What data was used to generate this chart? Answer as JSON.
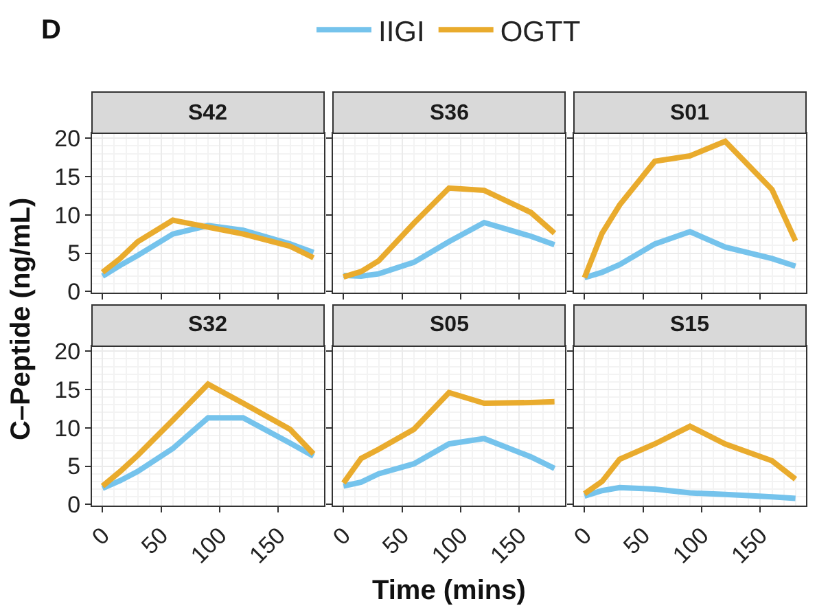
{
  "chart_data": [
    {
      "type": "line",
      "title": "S42",
      "annotations": [
        "D"
      ],
      "legend": "top",
      "grid": true,
      "tick_labels": "y",
      "ylabel": "C–Peptide (ng/mL)",
      "x": [
        0,
        15,
        30,
        60,
        90,
        120,
        160,
        180
      ],
      "xlim": [
        -9,
        189
      ],
      "xticks": [
        0,
        50,
        100,
        150
      ],
      "ylim": [
        -0.15,
        20.65
      ],
      "yticks": [
        0,
        5,
        10,
        15,
        20
      ],
      "series": [
        {
          "name": "IIGI",
          "color": "#75c3ec",
          "values": [
            2.0,
            3.4,
            4.7,
            7.5,
            8.6,
            8.0,
            6.2,
            5.1
          ]
        },
        {
          "name": "OGTT",
          "color": "#e9ab2d",
          "values": [
            2.5,
            4.3,
            6.5,
            9.3,
            8.4,
            7.5,
            5.9,
            4.4
          ]
        }
      ]
    },
    {
      "type": "line",
      "title": "S36",
      "grid": true,
      "tick_labels": false,
      "x": [
        0,
        15,
        30,
        60,
        90,
        120,
        160,
        180
      ],
      "xlim": [
        -9,
        189
      ],
      "xticks": [
        0,
        50,
        100,
        150
      ],
      "ylim": [
        -0.15,
        20.65
      ],
      "yticks": [
        0,
        5,
        10,
        15,
        20
      ],
      "series": [
        {
          "color": "#75c3ec",
          "values": [
            2.1,
            2.0,
            2.3,
            3.8,
            6.5,
            9.0,
            7.2,
            6.1
          ]
        },
        {
          "color": "#e9ab2d",
          "values": [
            1.9,
            2.6,
            4.0,
            8.9,
            13.5,
            13.2,
            10.3,
            7.6
          ]
        }
      ]
    },
    {
      "type": "line",
      "title": "S01",
      "grid": true,
      "tick_labels": false,
      "x": [
        0,
        15,
        30,
        60,
        90,
        120,
        160,
        180
      ],
      "xlim": [
        -9,
        189
      ],
      "xticks": [
        0,
        50,
        100,
        150
      ],
      "ylim": [
        -0.15,
        20.65
      ],
      "yticks": [
        0,
        5,
        10,
        15,
        20
      ],
      "series": [
        {
          "color": "#75c3ec",
          "values": [
            1.8,
            2.5,
            3.5,
            6.2,
            7.8,
            5.8,
            4.3,
            3.3
          ]
        },
        {
          "color": "#e9ab2d",
          "values": [
            1.8,
            7.6,
            11.3,
            17.0,
            17.7,
            19.6,
            13.3,
            6.6
          ]
        }
      ]
    },
    {
      "type": "line",
      "title": "S32",
      "grid": true,
      "x": [
        0,
        15,
        30,
        60,
        90,
        120,
        160,
        180
      ],
      "xlim": [
        -9,
        189
      ],
      "xticks": [
        0,
        50,
        100,
        150
      ],
      "ylim": [
        -0.15,
        20.65
      ],
      "yticks": [
        0,
        5,
        10,
        15,
        20
      ],
      "series": [
        {
          "color": "#75c3ec",
          "values": [
            2.1,
            3.1,
            4.3,
            7.3,
            11.3,
            11.3,
            8.0,
            6.3
          ]
        },
        {
          "color": "#e9ab2d",
          "values": [
            2.4,
            4.3,
            6.4,
            11.0,
            15.7,
            13.2,
            9.8,
            6.6
          ]
        }
      ]
    },
    {
      "type": "line",
      "title": "S05",
      "xlabel": "Time (mins)",
      "grid": true,
      "tick_labels": "x",
      "x": [
        0,
        15,
        30,
        60,
        90,
        120,
        160,
        180
      ],
      "xlim": [
        -9,
        189
      ],
      "xticks": [
        0,
        50,
        100,
        150
      ],
      "ylim": [
        -0.15,
        20.65
      ],
      "yticks": [
        0,
        5,
        10,
        15,
        20
      ],
      "series": [
        {
          "color": "#75c3ec",
          "values": [
            2.4,
            2.9,
            4.0,
            5.3,
            7.9,
            8.6,
            6.2,
            4.7
          ]
        },
        {
          "color": "#e9ab2d",
          "values": [
            2.8,
            6.0,
            7.2,
            9.8,
            14.6,
            13.2,
            13.3,
            13.4
          ]
        }
      ]
    },
    {
      "type": "line",
      "title": "S15",
      "grid": true,
      "tick_labels": "x",
      "x": [
        0,
        15,
        30,
        60,
        90,
        120,
        160,
        180
      ],
      "xlim": [
        -9,
        189
      ],
      "xticks": [
        0,
        50,
        100,
        150
      ],
      "ylim": [
        -0.15,
        20.65
      ],
      "yticks": [
        0,
        5,
        10,
        15,
        20
      ],
      "series": [
        {
          "color": "#75c3ec",
          "values": [
            1.1,
            1.8,
            2.2,
            2.0,
            1.5,
            1.3,
            1.0,
            0.8
          ]
        },
        {
          "color": "#e9ab2d",
          "values": [
            1.4,
            3.0,
            5.9,
            7.9,
            10.2,
            7.9,
            5.7,
            3.3
          ]
        }
      ]
    }
  ]
}
